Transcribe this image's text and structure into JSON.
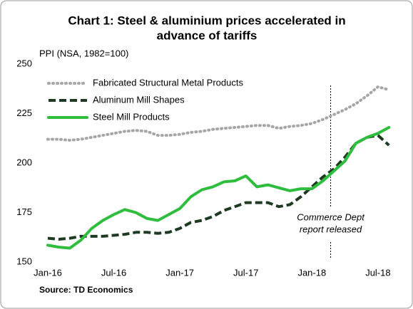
{
  "chart_data": {
    "type": "line",
    "title": [
      "Chart 1: Steel & aluminium prices accelerated in",
      "advance of tariffs"
    ],
    "y_label": "PPI (NSA, 1982=100)",
    "source": "Source: TD Economics",
    "annotation": [
      "Commerce Dept",
      "report released"
    ],
    "categories": [
      "Jan-16",
      null,
      null,
      null,
      null,
      null,
      "Jul-16",
      null,
      null,
      null,
      null,
      null,
      "Jan-17",
      null,
      null,
      null,
      null,
      null,
      "Jul-17",
      null,
      null,
      null,
      null,
      null,
      "Jan-18",
      null,
      null,
      null,
      null,
      null,
      "Jul-18",
      null
    ],
    "series": [
      {
        "name": "Fabricated Structural Metal Products",
        "color": "#a6a6a6",
        "style": "dotted",
        "values": [
          212,
          212,
          211.5,
          212,
          213,
          214,
          215,
          216,
          216.5,
          216,
          214,
          214,
          214.5,
          215.5,
          216,
          217,
          217.5,
          218,
          218.5,
          219,
          219,
          217.5,
          218.5,
          219,
          220,
          222,
          224.5,
          227,
          230,
          234,
          238.5,
          237
        ]
      },
      {
        "name": "Aluminum Mill Shapes",
        "color": "#1e3a22",
        "style": "dashed",
        "values": [
          162,
          161.5,
          162,
          163,
          163,
          163,
          163.5,
          164,
          165,
          165,
          164.5,
          165,
          167,
          170,
          171,
          173,
          176,
          178,
          180,
          180,
          180,
          178,
          179,
          183,
          188,
          193,
          197,
          203,
          210,
          213,
          214,
          209
        ]
      },
      {
        "name": "Steel Mill Products",
        "color": "#2ebd3c",
        "style": "solid",
        "values": [
          158.5,
          157.5,
          157,
          161,
          167,
          171,
          174,
          176.5,
          175,
          172,
          171,
          174,
          177,
          183,
          186.5,
          188,
          190.5,
          191,
          193.5,
          188,
          189,
          187.5,
          186,
          187,
          187,
          191,
          196,
          201,
          210,
          213,
          215,
          218
        ]
      }
    ],
    "ylim": [
      150,
      250
    ],
    "yticks": [
      150,
      175,
      200,
      225,
      250
    ],
    "legend": "upper left"
  }
}
